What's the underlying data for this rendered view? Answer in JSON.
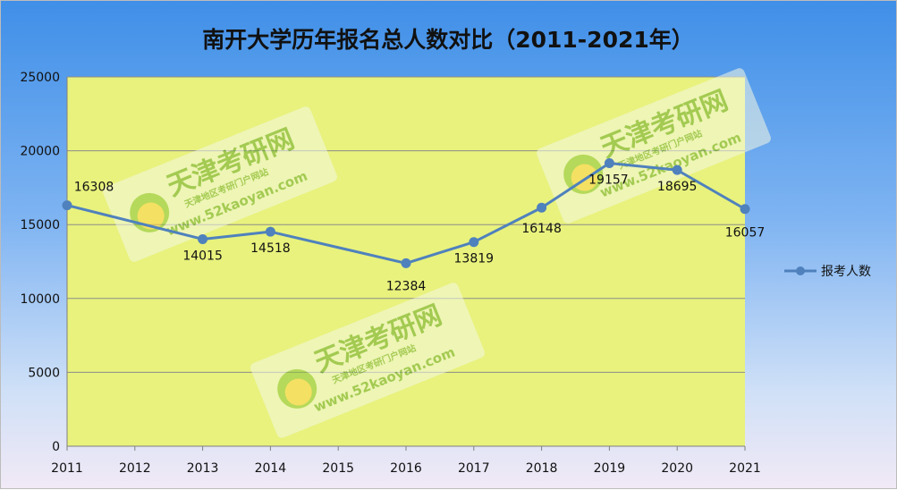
{
  "chart_data": {
    "type": "line",
    "title": "南开大学历年报名总人数对比（2011-2021年）",
    "categories": [
      "2011",
      "2012",
      "2013",
      "2014",
      "2015",
      "2016",
      "2017",
      "2018",
      "2019",
      "2020",
      "2021"
    ],
    "series": [
      {
        "name": "报考人数",
        "points": [
          {
            "x": "2011",
            "y": 16308
          },
          {
            "x": "2013",
            "y": 14015
          },
          {
            "x": "2014",
            "y": 14518
          },
          {
            "x": "2016",
            "y": 12384
          },
          {
            "x": "2017",
            "y": 13819
          },
          {
            "x": "2018",
            "y": 16148
          },
          {
            "x": "2019",
            "y": 19157
          },
          {
            "x": "2020",
            "y": 18695
          },
          {
            "x": "2021",
            "y": 16057
          }
        ],
        "color": "#4f81bd"
      }
    ],
    "ylim": [
      0,
      25000
    ],
    "yticks": [
      "0",
      "5000",
      "10000",
      "15000",
      "20000",
      "25000"
    ],
    "grid": true,
    "legend_position": "right",
    "plot_background": "#e8f27d"
  },
  "watermark": {
    "brand": "天津考研网",
    "subtitle": "天津地区考研门户网站",
    "url": "www.52kaoyan.com"
  }
}
